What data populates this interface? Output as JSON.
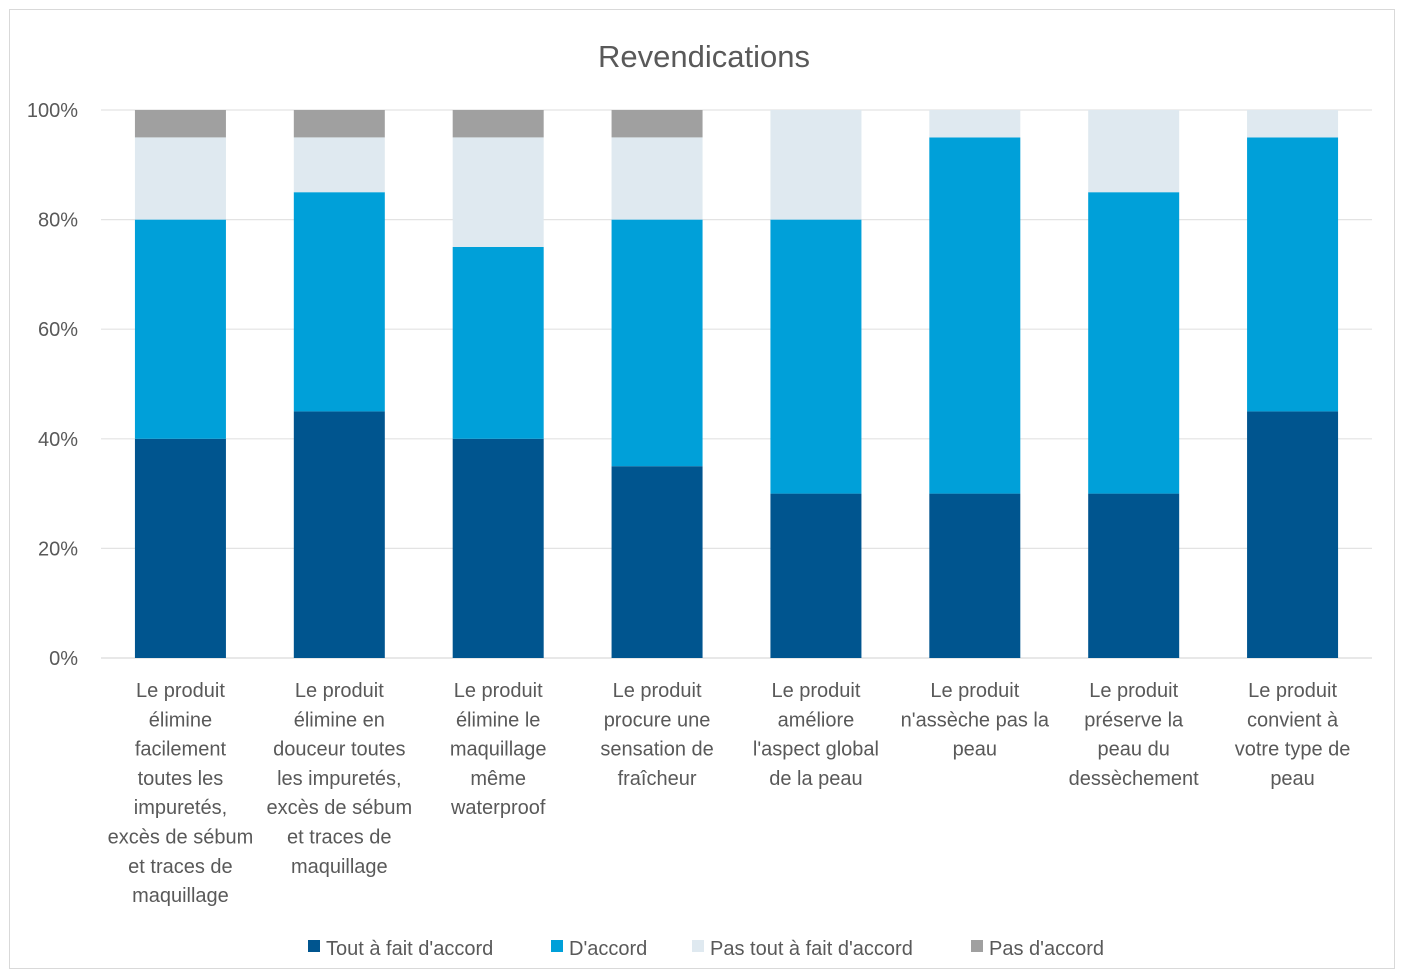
{
  "chart_data": {
    "type": "bar",
    "stacked": true,
    "title": "Revendications",
    "ylim": [
      0,
      100
    ],
    "yticks": [
      "0%",
      "20%",
      "40%",
      "60%",
      "80%",
      "100%"
    ],
    "grid": true,
    "legend_position": "bottom",
    "categories": [
      [
        "Le produit",
        "élimine",
        "facilement",
        "toutes les",
        "impuretés,",
        "excès de sébum",
        "et traces de",
        "maquillage"
      ],
      [
        "Le produit",
        "élimine en",
        "douceur toutes",
        "les impuretés,",
        "excès de sébum",
        "et traces de",
        "maquillage"
      ],
      [
        "Le produit",
        "élimine le",
        "maquillage",
        "même",
        "waterproof"
      ],
      [
        "Le produit",
        "procure une",
        "sensation de",
        "fraîcheur"
      ],
      [
        "Le produit",
        "améliore",
        "l'aspect global",
        "de la peau"
      ],
      [
        "Le produit",
        "n'assèche pas la",
        "peau"
      ],
      [
        "Le produit",
        "préserve la",
        "peau du",
        "dessèchement"
      ],
      [
        "Le produit",
        "convient à",
        "votre type de",
        "peau"
      ]
    ],
    "series": [
      {
        "name": "Tout à fait d'accord",
        "color": "#00558f",
        "values": [
          40,
          45,
          40,
          35,
          30,
          30,
          30,
          45
        ]
      },
      {
        "name": "D'accord",
        "color": "#00a0d9",
        "values": [
          40,
          40,
          35,
          45,
          50,
          65,
          55,
          50
        ]
      },
      {
        "name": "Pas tout à fait d'accord",
        "color": "#dfe9f0",
        "values": [
          15,
          10,
          20,
          15,
          20,
          5,
          15,
          5
        ]
      },
      {
        "name": "Pas d'accord",
        "color": "#a0a0a0",
        "values": [
          5,
          5,
          5,
          5,
          0,
          0,
          0,
          0
        ]
      }
    ]
  }
}
